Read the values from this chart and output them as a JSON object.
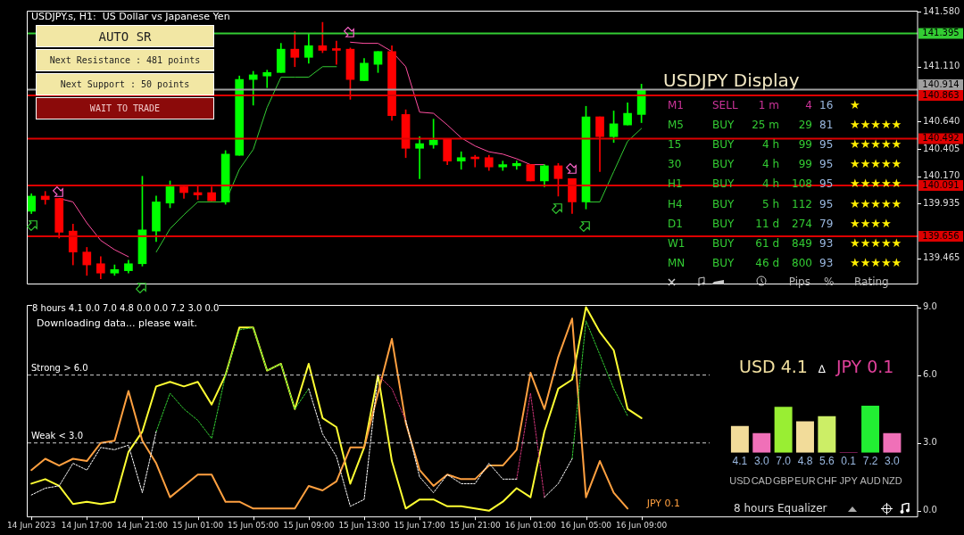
{
  "chart_data": [
    {
      "type": "candlestick",
      "title": "USDJPY.s, H1:  US Dollar vs Japanese Yen",
      "x": [
        "2023-06-14T13:00",
        "2023-06-14T14:00",
        "2023-06-14T15:00",
        "2023-06-14T16:00",
        "2023-06-14T17:00",
        "2023-06-14T18:00",
        "2023-06-14T19:00",
        "2023-06-14T20:00",
        "2023-06-14T21:00",
        "2023-06-14T22:00",
        "2023-06-14T23:00",
        "2023-06-15T00:00",
        "2023-06-15T01:00",
        "2023-06-15T02:00",
        "2023-06-15T03:00",
        "2023-06-15T04:00",
        "2023-06-15T05:00",
        "2023-06-15T06:00",
        "2023-06-15T07:00",
        "2023-06-15T08:00",
        "2023-06-15T09:00",
        "2023-06-15T10:00",
        "2023-06-15T11:00",
        "2023-06-15T12:00",
        "2023-06-15T13:00",
        "2023-06-15T14:00",
        "2023-06-15T15:00",
        "2023-06-15T16:00",
        "2023-06-15T17:00",
        "2023-06-15T18:00",
        "2023-06-15T19:00",
        "2023-06-15T20:00",
        "2023-06-15T21:00",
        "2023-06-15T22:00",
        "2023-06-15T23:00",
        "2023-06-16T00:00",
        "2023-06-16T01:00",
        "2023-06-16T02:00",
        "2023-06-16T03:00",
        "2023-06-16T04:00",
        "2023-06-16T05:00",
        "2023-06-16T06:00",
        "2023-06-16T07:00",
        "2023-06-16T08:00",
        "2023-06-16T09:00"
      ],
      "xlim": [
        "2023-06-14T12:40",
        "2023-06-17T04:55"
      ],
      "ohlc": [
        [
          139.87,
          140.02,
          139.85,
          140.0
        ],
        [
          140.0,
          140.04,
          139.93,
          139.97
        ],
        [
          139.98,
          139.98,
          139.64,
          139.69
        ],
        [
          139.7,
          139.76,
          139.41,
          139.52
        ],
        [
          139.52,
          139.56,
          139.32,
          139.41
        ],
        [
          139.42,
          139.48,
          139.29,
          139.34
        ],
        [
          139.34,
          139.41,
          139.32,
          139.37
        ],
        [
          139.36,
          139.45,
          139.34,
          139.42
        ],
        [
          139.42,
          140.17,
          139.4,
          139.71
        ],
        [
          139.7,
          140.0,
          139.61,
          139.95
        ],
        [
          139.94,
          140.13,
          139.9,
          140.08
        ],
        [
          140.08,
          140.08,
          139.98,
          140.03
        ],
        [
          140.03,
          140.09,
          139.97,
          140.01
        ],
        [
          140.03,
          140.08,
          139.96,
          139.96
        ],
        [
          139.95,
          140.39,
          139.93,
          140.36
        ],
        [
          140.35,
          141.03,
          140.35,
          141.0
        ],
        [
          141.0,
          141.07,
          140.78,
          141.04
        ],
        [
          141.03,
          141.08,
          140.93,
          141.06
        ],
        [
          141.06,
          141.31,
          141.06,
          141.26
        ],
        [
          141.26,
          141.41,
          141.11,
          141.19
        ],
        [
          141.19,
          141.39,
          141.14,
          141.29
        ],
        [
          141.29,
          141.49,
          141.23,
          141.25
        ],
        [
          141.26,
          141.33,
          141.13,
          141.25
        ],
        [
          141.26,
          141.27,
          140.83,
          141.0
        ],
        [
          140.99,
          141.18,
          140.99,
          141.14
        ],
        [
          141.13,
          141.24,
          141.06,
          141.24
        ],
        [
          141.24,
          141.29,
          140.65,
          140.69
        ],
        [
          140.7,
          140.74,
          140.33,
          140.41
        ],
        [
          140.41,
          140.51,
          140.15,
          140.45
        ],
        [
          140.44,
          140.66,
          140.41,
          140.48
        ],
        [
          140.49,
          140.49,
          140.27,
          140.3
        ],
        [
          140.3,
          140.38,
          140.23,
          140.33
        ],
        [
          140.33,
          140.35,
          140.25,
          140.32
        ],
        [
          140.33,
          140.35,
          140.22,
          140.25
        ],
        [
          140.25,
          140.3,
          140.22,
          140.27
        ],
        [
          140.26,
          140.3,
          140.23,
          140.28
        ],
        [
          140.27,
          140.27,
          140.13,
          140.13
        ],
        [
          140.13,
          140.27,
          140.08,
          140.26
        ],
        [
          140.26,
          140.28,
          140.0,
          140.15
        ],
        [
          140.15,
          140.15,
          139.85,
          139.95
        ],
        [
          139.95,
          140.77,
          139.89,
          140.68
        ],
        [
          140.68,
          140.68,
          140.21,
          140.51
        ],
        [
          140.51,
          140.73,
          140.46,
          140.62
        ],
        [
          140.61,
          140.8,
          140.61,
          140.71
        ],
        [
          140.7,
          140.96,
          140.63,
          140.91
        ]
      ],
      "colors": [
        "#00ff00",
        "#ff0000",
        "#ff0000",
        "#ff0000",
        "#ff0000",
        "#ff0000",
        "#00ff00",
        "#00ff00",
        "#00ff00",
        "#00ff00",
        "#00ff00",
        "#ff0000",
        "#ff0000",
        "#ff0000",
        "#00ff00",
        "#00ff00",
        "#00ff00",
        "#00ff00",
        "#00ff00",
        "#ff0000",
        "#00ff00",
        "#ff0000",
        "#ff0000",
        "#ff0000",
        "#00ff00",
        "#00ff00",
        "#ff0000",
        "#ff0000",
        "#00ff00",
        "#00ff00",
        "#ff0000",
        "#00ff00",
        "#ff0000",
        "#ff0000",
        "#00ff00",
        "#00ff00",
        "#ff0000",
        "#00ff00",
        "#ff0000",
        "#ff0000",
        "#00ff00",
        "#ff0000",
        "#00ff00",
        "#00ff00",
        "#00ff00"
      ],
      "series": [
        {
          "type": "line",
          "color": "#ff4fa0",
          "values": [
            null,
            null,
            139.98,
            139.95,
            139.77,
            139.62,
            139.54,
            139.48,
            null,
            null,
            null,
            null,
            null,
            null,
            null,
            null,
            null,
            null,
            null,
            null,
            null,
            null,
            null,
            141.32,
            141.31,
            141.31,
            141.24,
            141.11,
            140.72,
            140.71,
            140.61,
            140.5,
            140.43,
            140.38,
            140.36,
            140.32,
            140.27,
            140.27,
            null,
            null,
            null,
            null,
            null,
            null,
            null
          ]
        },
        {
          "type": "line",
          "color": "#33cc33",
          "values": [
            null,
            null,
            null,
            null,
            null,
            null,
            null,
            null,
            null,
            139.52,
            139.72,
            139.84,
            139.95,
            139.95,
            139.95,
            140.23,
            140.4,
            140.76,
            141.02,
            141.02,
            141.02,
            141.11,
            141.11,
            null,
            null,
            null,
            null,
            null,
            null,
            null,
            null,
            null,
            null,
            null,
            null,
            null,
            null,
            null,
            null,
            null,
            139.95,
            139.95,
            140.21,
            140.47,
            140.58
          ]
        }
      ],
      "ylim": [
        139.25,
        141.59
      ],
      "yticks": [
        {
          "value": 141.58,
          "label": "141.580"
        },
        {
          "value": 141.11,
          "label": "141.110"
        },
        {
          "value": 140.64,
          "label": "140.640"
        },
        {
          "value": 140.405,
          "label": "140.405"
        },
        {
          "value": 140.17,
          "label": "140.170"
        },
        {
          "value": 139.935,
          "label": "139.935"
        },
        {
          "value": 139.465,
          "label": "139.465"
        }
      ],
      "ref_lines": [
        {
          "axis": "y",
          "value": 141.395,
          "label": "141.395",
          "color": "#33cc33"
        },
        {
          "axis": "y",
          "value": 140.914,
          "label": "140.914",
          "color": "#a0a0a0"
        },
        {
          "axis": "y",
          "value": 140.863,
          "label": "140.863",
          "color": "#dd0000"
        },
        {
          "axis": "y",
          "value": 140.492,
          "label": "140.492",
          "color": "#dd0000"
        },
        {
          "axis": "y",
          "value": 140.091,
          "label": "140.091",
          "color": "#dd0000"
        },
        {
          "axis": "y",
          "value": 139.656,
          "label": "139.656",
          "color": "#dd0000"
        }
      ],
      "tick_labels": "y"
    },
    {
      "type": "other",
      "title": "AUTO SR",
      "annotations": [
        "Next Resistance : 481 points",
        "Next Support : 50 points",
        "WAIT TO TRADE"
      ]
    },
    {
      "type": "other",
      "title": "USDJPY Display",
      "categories": [
        null,
        null,
        "Pips",
        "%",
        "Rating"
      ],
      "y_categories": [
        "M1",
        "M5",
        "15",
        "30",
        "H1",
        "H4",
        "D1",
        "W1",
        "MN"
      ],
      "cell_labels": [
        [
          "SELL",
          "1 m",
          "4",
          "16",
          "★"
        ],
        [
          "BUY",
          "25 m",
          "29",
          "81",
          "★★★★★"
        ],
        [
          "BUY",
          "4 h",
          "99",
          "95",
          "★★★★★"
        ],
        [
          "BUY",
          "4 h",
          "99",
          "95",
          "★★★★★"
        ],
        [
          "BUY",
          "4 h",
          "108",
          "95",
          "★★★★★"
        ],
        [
          "BUY",
          "5 h",
          "112",
          "95",
          "★★★★★"
        ],
        [
          "BUY",
          "11 d",
          "274",
          "79",
          "★★★★"
        ],
        [
          "BUY",
          "61 d",
          "849",
          "93",
          "★★★★★"
        ],
        [
          "BUY",
          "46 d",
          "800",
          "93",
          "★★★★★"
        ]
      ],
      "colors": [
        "#cc3399",
        "#33cc33",
        "#33cc33",
        "#33cc33",
        "#33cc33",
        "#33cc33",
        "#33cc33",
        "#33cc33",
        "#33cc33"
      ]
    },
    {
      "type": "line",
      "title": "8 hours 4.1 0.0 7.0 4.8 0.0 0.0 7.2 3.0 0.0",
      "subtitle": "Downloading data... please wait.",
      "x": [
        "2023-06-14T13:00",
        "2023-06-14T14:00",
        "2023-06-14T15:00",
        "2023-06-14T16:00",
        "2023-06-14T17:00",
        "2023-06-14T18:00",
        "2023-06-14T19:00",
        "2023-06-14T20:00",
        "2023-06-14T21:00",
        "2023-06-14T22:00",
        "2023-06-14T23:00",
        "2023-06-15T00:00",
        "2023-06-15T01:00",
        "2023-06-15T02:00",
        "2023-06-15T03:00",
        "2023-06-15T04:00",
        "2023-06-15T05:00",
        "2023-06-15T06:00",
        "2023-06-15T07:00",
        "2023-06-15T08:00",
        "2023-06-15T09:00",
        "2023-06-15T10:00",
        "2023-06-15T11:00",
        "2023-06-15T12:00",
        "2023-06-15T13:00",
        "2023-06-15T14:00",
        "2023-06-15T15:00",
        "2023-06-15T16:00",
        "2023-06-15T17:00",
        "2023-06-15T18:00",
        "2023-06-15T19:00",
        "2023-06-15T20:00",
        "2023-06-15T21:00",
        "2023-06-15T22:00",
        "2023-06-15T23:00",
        "2023-06-16T00:00",
        "2023-06-16T01:00",
        "2023-06-16T02:00",
        "2023-06-16T03:00",
        "2023-06-16T04:00",
        "2023-06-16T05:00",
        "2023-06-16T06:00",
        "2023-06-16T07:00",
        "2023-06-16T08:00",
        "2023-06-16T09:00"
      ],
      "xlim": [
        "2023-06-14T12:40",
        "2023-06-17T04:55"
      ],
      "xticks": [
        {
          "value": "2023-06-14T13:00",
          "label": "14 Jun 2023"
        },
        {
          "value": "2023-06-14T17:00",
          "label": "14 Jun 17:00"
        },
        {
          "value": "2023-06-14T21:00",
          "label": "14 Jun 21:00"
        },
        {
          "value": "2023-06-15T01:00",
          "label": "15 Jun 01:00"
        },
        {
          "value": "2023-06-15T05:00",
          "label": "15 Jun 05:00"
        },
        {
          "value": "2023-06-15T09:00",
          "label": "15 Jun 09:00"
        },
        {
          "value": "2023-06-15T13:00",
          "label": "15 Jun 13:00"
        },
        {
          "value": "2023-06-15T17:00",
          "label": "15 Jun 17:00"
        },
        {
          "value": "2023-06-15T21:00",
          "label": "15 Jun 21:00"
        },
        {
          "value": "2023-06-16T01:00",
          "label": "16 Jun 01:00"
        },
        {
          "value": "2023-06-16T05:00",
          "label": "16 Jun 05:00"
        },
        {
          "value": "2023-06-16T09:00",
          "label": "16 Jun 09:00"
        }
      ],
      "series": [
        {
          "type": "line",
          "color": "#ffffff",
          "line_style": "dashed",
          "values": [
            0.7,
            1.0,
            1.1,
            2.1,
            1.8,
            2.8,
            2.7,
            2.9,
            0.8,
            3.5,
            null,
            null,
            null,
            null,
            null,
            null,
            null,
            null,
            null,
            null,
            5.4,
            3.4,
            2.4,
            0.2,
            0.5,
            6.0,
            null,
            4.0,
            1.5,
            0.8,
            1.6,
            1.2,
            1.2,
            2.1,
            1.4,
            1.4,
            null,
            0.6,
            1.2,
            2.3,
            null,
            null,
            null,
            null,
            null
          ]
        },
        {
          "type": "line",
          "color": "#33cc33",
          "line_style": "dashed",
          "values": [
            null,
            null,
            null,
            null,
            null,
            null,
            null,
            null,
            null,
            3.5,
            5.2,
            4.5,
            4.0,
            3.2,
            6.0,
            8.0,
            8.1,
            6.2,
            6.5,
            4.5,
            5.4,
            null,
            null,
            null,
            null,
            null,
            null,
            null,
            null,
            null,
            null,
            null,
            null,
            null,
            null,
            null,
            null,
            null,
            null,
            2.3,
            8.4,
            6.9,
            5.4,
            4.2,
            null
          ]
        },
        {
          "type": "line",
          "color": "#cc3377",
          "line_style": "dashed",
          "values": [
            null,
            null,
            null,
            null,
            null,
            null,
            null,
            null,
            null,
            null,
            null,
            null,
            null,
            null,
            null,
            null,
            null,
            null,
            null,
            null,
            null,
            null,
            null,
            null,
            null,
            6.0,
            5.4,
            4.0,
            null,
            null,
            null,
            null,
            null,
            null,
            null,
            1.4,
            5.2,
            0.6,
            null,
            null,
            null,
            null,
            null,
            null,
            null
          ]
        },
        {
          "type": "line",
          "color": "#ffa040",
          "values": [
            1.8,
            2.3,
            2.0,
            2.3,
            2.2,
            3.0,
            3.1,
            5.3,
            3.1,
            2.1,
            0.6,
            1.1,
            1.6,
            1.6,
            0.4,
            0.4,
            0.1,
            0.1,
            0.1,
            0.1,
            1.1,
            0.9,
            1.3,
            2.8,
            2.8,
            5.2,
            7.6,
            3.9,
            1.8,
            1.1,
            1.6,
            1.4,
            1.4,
            2.0,
            2.0,
            2.7,
            6.1,
            4.5,
            6.8,
            8.5,
            0.6,
            2.2,
            0.8,
            0.1,
            null
          ]
        },
        {
          "type": "line",
          "color": "#ffff33",
          "values": [
            1.2,
            1.4,
            1.1,
            0.3,
            0.4,
            0.3,
            0.4,
            2.6,
            3.5,
            5.5,
            5.7,
            5.5,
            5.7,
            4.7,
            6.0,
            8.1,
            8.1,
            6.2,
            6.5,
            4.5,
            6.5,
            4.1,
            3.7,
            1.2,
            2.8,
            6.0,
            2.2,
            0.1,
            0.5,
            0.5,
            0.2,
            0.2,
            0.1,
            0.0,
            0.4,
            1.0,
            0.6,
            3.5,
            5.4,
            5.8,
            9.0,
            7.9,
            7.1,
            4.5,
            4.1
          ]
        }
      ],
      "ylim": [
        -0.25,
        9.1
      ],
      "yticks": [
        {
          "value": 0,
          "label": "0.0"
        },
        {
          "value": 3,
          "label": "3.0"
        },
        {
          "value": 6,
          "label": "6.0"
        },
        {
          "value": 9,
          "label": "9.0"
        }
      ],
      "ref_lines": [
        {
          "axis": "y",
          "value": 6,
          "label": "Strong > 6.0",
          "color": "#d0d0d0",
          "line_style": "dashed"
        },
        {
          "axis": "y",
          "value": 3,
          "label": "Weak < 3.0",
          "color": "#d0d0d0",
          "line_style": "dashed"
        }
      ],
      "annotations": [
        "JPY 0.1"
      ]
    },
    {
      "type": "bar",
      "title": "8 hours Equalizer",
      "categories": [
        "USD",
        "CAD",
        "GBP",
        "EUR",
        "CHF",
        "JPY",
        "AUD",
        "NZD"
      ],
      "values": [
        4.1,
        3.0,
        7.0,
        4.8,
        5.6,
        0.1,
        7.2,
        3.0
      ],
      "value_labels": [
        "4.1",
        "3.0",
        "7.0",
        "4.8",
        "5.6",
        "0.1",
        "7.2",
        "3.0"
      ],
      "colors": [
        "#f2dc9a",
        "#f070b8",
        "#99ee33",
        "#f2dc9a",
        "#ccee66",
        "#c8308a",
        "#22ee33",
        "#f070b8"
      ],
      "annotations": [
        "USD 4.1",
        "∆",
        "JPY 0.1"
      ]
    }
  ]
}
